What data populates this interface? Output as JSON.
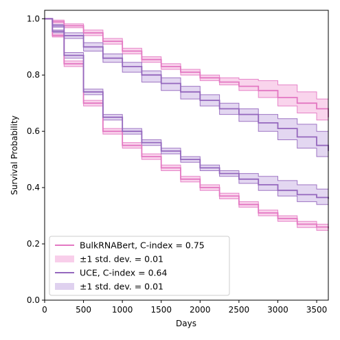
{
  "chart_data": {
    "type": "line",
    "xlabel": "Days",
    "ylabel": "Survival Probability",
    "xlim": [
      0,
      3650
    ],
    "ylim": [
      0.0,
      1.03
    ],
    "x_ticks": [
      0,
      500,
      1000,
      1500,
      2000,
      2500,
      3000,
      3500
    ],
    "y_ticks": [
      0.0,
      0.2,
      0.4,
      0.6,
      0.8,
      1.0
    ],
    "x_tick_labels": [
      "0",
      "500",
      "1000",
      "1500",
      "2000",
      "2500",
      "3000",
      "3500"
    ],
    "y_tick_labels": [
      "0.0",
      "0.2",
      "0.4",
      "0.6",
      "0.8",
      "1.0"
    ],
    "legend_position": "lower-left",
    "grid": false,
    "series": [
      {
        "name": "BulkRNABert, C-index = 0.75",
        "band_label": "±1 std. dev. = 0.01",
        "color": "#e377c2",
        "band_color": "#f7c6e6",
        "groups": [
          {
            "x": [
              0,
              100,
              250,
              500,
              750,
              1000,
              1250,
              1500,
              1750,
              2000,
              2250,
              2500,
              2750,
              3000,
              3250,
              3500,
              3650
            ],
            "y": [
              1.0,
              0.99,
              0.975,
              0.95,
              0.92,
              0.885,
              0.855,
              0.83,
              0.81,
              0.79,
              0.775,
              0.76,
              0.745,
              0.72,
              0.7,
              0.68,
              0.65
            ],
            "lower": [
              1.0,
              0.985,
              0.968,
              0.94,
              0.91,
              0.875,
              0.845,
              0.82,
              0.8,
              0.78,
              0.765,
              0.745,
              0.72,
              0.69,
              0.665,
              0.64,
              0.61
            ],
            "upper": [
              1.0,
              0.995,
              0.982,
              0.96,
              0.93,
              0.895,
              0.865,
              0.84,
              0.82,
              0.8,
              0.79,
              0.785,
              0.78,
              0.765,
              0.74,
              0.715,
              0.685
            ]
          },
          {
            "x": [
              0,
              100,
              250,
              500,
              750,
              1000,
              1250,
              1500,
              1750,
              2000,
              2250,
              2500,
              2750,
              3000,
              3250,
              3500,
              3650
            ],
            "y": [
              1.0,
              0.94,
              0.84,
              0.7,
              0.6,
              0.55,
              0.51,
              0.47,
              0.43,
              0.4,
              0.37,
              0.34,
              0.31,
              0.29,
              0.27,
              0.26,
              0.255
            ],
            "lower": [
              1.0,
              0.935,
              0.83,
              0.69,
              0.59,
              0.54,
              0.5,
              0.46,
              0.42,
              0.39,
              0.36,
              0.33,
              0.3,
              0.28,
              0.258,
              0.248,
              0.24
            ],
            "upper": [
              1.0,
              0.945,
              0.85,
              0.71,
              0.61,
              0.56,
              0.52,
              0.48,
              0.44,
              0.41,
              0.38,
              0.35,
              0.32,
              0.3,
              0.28,
              0.27,
              0.265
            ]
          }
        ]
      },
      {
        "name": "UCE, C-index = 0.64",
        "band_label": "±1 std. dev. = 0.01",
        "color": "#9467bd",
        "band_color": "#d9c9ec",
        "groups": [
          {
            "x": [
              0,
              100,
              250,
              500,
              750,
              1000,
              1250,
              1500,
              1750,
              2000,
              2250,
              2500,
              2750,
              3000,
              3250,
              3500,
              3650
            ],
            "y": [
              1.0,
              0.975,
              0.94,
              0.9,
              0.86,
              0.83,
              0.8,
              0.77,
              0.74,
              0.71,
              0.68,
              0.66,
              0.63,
              0.61,
              0.58,
              0.55,
              0.53
            ],
            "lower": [
              1.0,
              0.97,
              0.93,
              0.885,
              0.845,
              0.81,
              0.775,
              0.745,
              0.715,
              0.69,
              0.66,
              0.635,
              0.6,
              0.57,
              0.54,
              0.51,
              0.48
            ],
            "upper": [
              1.0,
              0.98,
              0.95,
              0.915,
              0.875,
              0.845,
              0.815,
              0.79,
              0.76,
              0.73,
              0.7,
              0.68,
              0.66,
              0.645,
              0.625,
              0.6,
              0.58
            ]
          },
          {
            "x": [
              0,
              100,
              250,
              500,
              750,
              1000,
              1250,
              1500,
              1750,
              2000,
              2250,
              2500,
              2750,
              3000,
              3250,
              3500,
              3650
            ],
            "y": [
              1.0,
              0.955,
              0.87,
              0.74,
              0.65,
              0.6,
              0.56,
              0.53,
              0.5,
              0.47,
              0.45,
              0.43,
              0.41,
              0.39,
              0.375,
              0.365,
              0.36
            ],
            "lower": [
              1.0,
              0.95,
              0.86,
              0.73,
              0.64,
              0.59,
              0.55,
              0.52,
              0.49,
              0.46,
              0.44,
              0.415,
              0.39,
              0.37,
              0.35,
              0.34,
              0.335
            ],
            "upper": [
              1.0,
              0.96,
              0.88,
              0.75,
              0.66,
              0.61,
              0.57,
              0.54,
              0.51,
              0.48,
              0.46,
              0.45,
              0.44,
              0.425,
              0.41,
              0.395,
              0.39
            ]
          }
        ]
      }
    ]
  }
}
